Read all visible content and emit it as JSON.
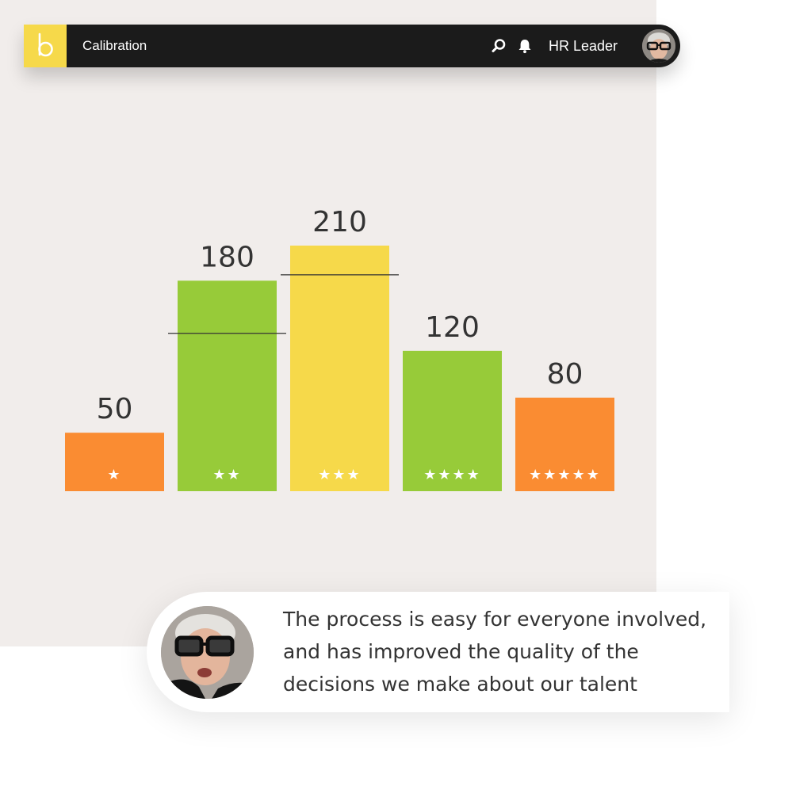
{
  "app": {
    "logo_letter": "b",
    "title": "Calibration",
    "user_name": "HR Leader",
    "icons": [
      "search-icon",
      "bell-icon"
    ]
  },
  "colors": {
    "orange": "#fa8c32",
    "green": "#97cb39",
    "yellow": "#f6d94a",
    "topbar": "#1b1b1b",
    "panel": "#f1edeb"
  },
  "chart_data": {
    "type": "bar",
    "title": "",
    "xlabel": "",
    "ylabel": "",
    "categories": [
      "★",
      "★★",
      "★★★",
      "★★★★",
      "★★★★★"
    ],
    "values": [
      50,
      180,
      210,
      120,
      80
    ],
    "bar_colors": [
      "#fa8c32",
      "#97cb39",
      "#f6d94a",
      "#97cb39",
      "#fa8c32"
    ],
    "reference_lines": [
      {
        "category": "★★",
        "value": 135
      },
      {
        "category": "★★★",
        "value": 185
      }
    ],
    "ylim": [
      0,
      240
    ],
    "grid": false,
    "legend": "none"
  },
  "testimonial": {
    "quote": "The process is easy for everyone involved, and has improved the quality of the decisions we make about our talent"
  }
}
